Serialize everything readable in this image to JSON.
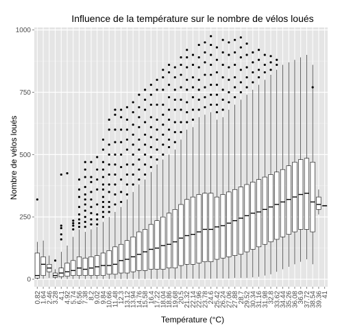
{
  "chart_data": {
    "type": "boxplot",
    "title": "Influence de la température sur le nombre de vélos loués",
    "xlabel": "Température (°C)",
    "ylabel": "Nombre de vélos loués",
    "ylim": [
      -30,
      1010
    ],
    "yticks": [
      0,
      250,
      500,
      750,
      1000
    ],
    "grid": true,
    "background": "#e5e5e5",
    "grid_color": "#ffffff",
    "box_color": "#000000",
    "categories": [
      "0.82",
      "1.64",
      "2.46",
      "3.28",
      "4.1",
      "4.92",
      "5.74",
      "6.56",
      "7.38",
      "8.2",
      "9.02",
      "9.84",
      "10.66",
      "11.48",
      "12.3",
      "13.12",
      "13.94",
      "14.76",
      "15.58",
      "16.4",
      "17.22",
      "18.04",
      "18.86",
      "19.68",
      "20.5",
      "21.32",
      "22.14",
      "22.96",
      "23.78",
      "24.6",
      "25.42",
      "26.24",
      "27.06",
      "27.88",
      "28.7",
      "29.52",
      "30.34",
      "31.16",
      "31.98",
      "32.8",
      "33.62",
      "34.44",
      "35.26",
      "36.08",
      "36.9",
      "37.72",
      "38.54",
      "39.36",
      "41"
    ],
    "boxes": [
      {
        "q1": 5,
        "med": 15,
        "q3": 105,
        "lo": 0,
        "hi": 150,
        "outliers": [
          320
        ]
      },
      {
        "q1": 15,
        "med": 60,
        "q3": 90,
        "lo": 2,
        "hi": 155,
        "outliers": []
      },
      {
        "q1": 30,
        "med": 45,
        "q3": 60,
        "lo": 5,
        "hi": 95,
        "outliers": []
      },
      {
        "q1": 8,
        "med": 15,
        "q3": 25,
        "lo": 1,
        "hi": 40,
        "outliers": [
          75
        ]
      },
      {
        "q1": 10,
        "med": 25,
        "q3": 45,
        "lo": 1,
        "hi": 110,
        "outliers": [
          160,
          180,
          205,
          215,
          420
        ]
      },
      {
        "q1": 12,
        "med": 30,
        "q3": 65,
        "lo": 1,
        "hi": 135,
        "outliers": [
          425
        ]
      },
      {
        "q1": 15,
        "med": 35,
        "q3": 75,
        "lo": 1,
        "hi": 170,
        "outliers": [
          200,
          215,
          225,
          235
        ]
      },
      {
        "q1": 15,
        "med": 45,
        "q3": 90,
        "lo": 1,
        "hi": 200,
        "outliers": [
          210,
          225,
          240,
          260,
          290,
          330,
          360,
          400
        ]
      },
      {
        "q1": 15,
        "med": 40,
        "q3": 85,
        "lo": 1,
        "hi": 190,
        "outliers": [
          210,
          230,
          250,
          275,
          300,
          320,
          340,
          370,
          410,
          440,
          470
        ]
      },
      {
        "q1": 15,
        "med": 45,
        "q3": 90,
        "lo": 1,
        "hi": 200,
        "outliers": [
          220,
          240,
          265,
          290,
          320,
          350,
          390,
          410,
          470
        ]
      },
      {
        "q1": 15,
        "med": 50,
        "q3": 95,
        "lo": 1,
        "hi": 210,
        "outliers": [
          220,
          240,
          260,
          300,
          360,
          400,
          440,
          490
        ]
      },
      {
        "q1": 15,
        "med": 55,
        "q3": 105,
        "lo": 1,
        "hi": 230,
        "outliers": [
          250,
          270,
          290,
          310,
          330,
          360,
          380,
          410,
          440,
          470,
          520,
          560
        ]
      },
      {
        "q1": 20,
        "med": 55,
        "q3": 115,
        "lo": 1,
        "hi": 250,
        "outliers": [
          270,
          290,
          310,
          350,
          380,
          420,
          460,
          500,
          540,
          600,
          640
        ]
      },
      {
        "q1": 20,
        "med": 60,
        "q3": 130,
        "lo": 1,
        "hi": 270,
        "outliers": [
          300,
          340,
          380,
          420,
          460,
          500,
          550,
          600,
          660,
          680
        ]
      },
      {
        "q1": 25,
        "med": 75,
        "q3": 140,
        "lo": 1,
        "hi": 290,
        "outliers": [
          310,
          350,
          400,
          450,
          500,
          550,
          600,
          650,
          680
        ]
      },
      {
        "q1": 25,
        "med": 80,
        "q3": 155,
        "lo": 1,
        "hi": 320,
        "outliers": [
          340,
          380,
          420,
          460,
          520,
          560,
          600,
          640,
          690
        ]
      },
      {
        "q1": 30,
        "med": 90,
        "q3": 170,
        "lo": 1,
        "hi": 350,
        "outliers": [
          380,
          420,
          460,
          500,
          540,
          580,
          620,
          670,
          710
        ]
      },
      {
        "q1": 35,
        "med": 100,
        "q3": 190,
        "lo": 1,
        "hi": 380,
        "outliers": [
          400,
          440,
          480,
          520,
          560,
          610,
          650,
          690,
          740
        ]
      },
      {
        "q1": 35,
        "med": 110,
        "q3": 200,
        "lo": 1,
        "hi": 400,
        "outliers": [
          420,
          460,
          500,
          540,
          580,
          630,
          680,
          720,
          760
        ]
      },
      {
        "q1": 40,
        "med": 120,
        "q3": 220,
        "lo": 1,
        "hi": 430,
        "outliers": [
          450,
          490,
          530,
          570,
          610,
          650,
          700,
          740,
          780
        ]
      },
      {
        "q1": 40,
        "med": 125,
        "q3": 235,
        "lo": 1,
        "hi": 460,
        "outliers": [
          480,
          520,
          560,
          600,
          640,
          700,
          760,
          800
        ]
      },
      {
        "q1": 40,
        "med": 135,
        "q3": 250,
        "lo": 1,
        "hi": 480,
        "outliers": [
          500,
          540,
          580,
          620,
          660,
          700,
          760,
          810,
          840
        ]
      },
      {
        "q1": 45,
        "med": 140,
        "q3": 265,
        "lo": 1,
        "hi": 500,
        "outliers": [
          530,
          560,
          600,
          640,
          680,
          730,
          780,
          830,
          860
        ]
      },
      {
        "q1": 45,
        "med": 150,
        "q3": 280,
        "lo": 1,
        "hi": 520,
        "outliers": [
          550,
          590,
          630,
          680,
          720,
          760,
          810,
          850
        ]
      },
      {
        "q1": 55,
        "med": 165,
        "q3": 300,
        "lo": 2,
        "hi": 560,
        "outliers": [
          590,
          630,
          680,
          720,
          770,
          820,
          860,
          890
        ]
      },
      {
        "q1": 60,
        "med": 175,
        "q3": 320,
        "lo": 2,
        "hi": 600,
        "outliers": [
          630,
          670,
          710,
          760,
          800,
          850,
          890,
          920
        ]
      },
      {
        "q1": 60,
        "med": 180,
        "q3": 330,
        "lo": 2,
        "hi": 610,
        "outliers": [
          640,
          680,
          730,
          770,
          810,
          860,
          900
        ]
      },
      {
        "q1": 65,
        "med": 190,
        "q3": 340,
        "lo": 2,
        "hi": 650,
        "outliers": [
          680,
          720,
          760,
          800,
          850,
          890,
          940
        ]
      },
      {
        "q1": 70,
        "med": 200,
        "q3": 345,
        "lo": 2,
        "hi": 660,
        "outliers": [
          690,
          730,
          770,
          820,
          870,
          910,
          950
        ]
      },
      {
        "q1": 70,
        "med": 200,
        "q3": 345,
        "lo": 2,
        "hi": 670,
        "outliers": [
          700,
          740,
          780,
          820,
          860,
          900,
          940,
          975
        ]
      },
      {
        "q1": 80,
        "med": 210,
        "q3": 330,
        "lo": 3,
        "hi": 640,
        "outliers": [
          670,
          700,
          740,
          780,
          830,
          880,
          930
        ]
      },
      {
        "q1": 85,
        "med": 215,
        "q3": 340,
        "lo": 3,
        "hi": 650,
        "outliers": [
          680,
          720,
          760,
          810,
          860,
          910,
          960
        ]
      },
      {
        "q1": 90,
        "med": 225,
        "q3": 350,
        "lo": 3,
        "hi": 680,
        "outliers": [
          710,
          750,
          800,
          850,
          900,
          950
        ]
      },
      {
        "q1": 95,
        "med": 235,
        "q3": 360,
        "lo": 5,
        "hi": 700,
        "outliers": [
          730,
          770,
          810,
          860,
          910,
          960
        ]
      },
      {
        "q1": 100,
        "med": 245,
        "q3": 370,
        "lo": 5,
        "hi": 720,
        "outliers": [
          750,
          790,
          840,
          890,
          930,
          970
        ]
      },
      {
        "q1": 110,
        "med": 255,
        "q3": 380,
        "lo": 5,
        "hi": 740,
        "outliers": [
          770,
          810,
          850,
          900,
          945
        ]
      },
      {
        "q1": 120,
        "med": 265,
        "q3": 390,
        "lo": 8,
        "hi": 760,
        "outliers": [
          790,
          830,
          870,
          910
        ]
      },
      {
        "q1": 130,
        "med": 270,
        "q3": 400,
        "lo": 10,
        "hi": 780,
        "outliers": [
          810,
          840,
          880,
          920
        ]
      },
      {
        "q1": 140,
        "med": 280,
        "q3": 410,
        "lo": 15,
        "hi": 800,
        "outliers": [
          830,
          860,
          900
        ]
      },
      {
        "q1": 150,
        "med": 290,
        "q3": 420,
        "lo": 20,
        "hi": 820,
        "outliers": [
          840,
          870,
          895
        ]
      },
      {
        "q1": 160,
        "med": 300,
        "q3": 430,
        "lo": 30,
        "hi": 840,
        "outliers": [
          860,
          880
        ]
      },
      {
        "q1": 170,
        "med": 310,
        "q3": 440,
        "lo": 40,
        "hi": 860,
        "outliers": []
      },
      {
        "q1": 180,
        "med": 320,
        "q3": 455,
        "lo": 50,
        "hi": 870,
        "outliers": []
      },
      {
        "q1": 190,
        "med": 330,
        "q3": 470,
        "lo": 60,
        "hi": 880,
        "outliers": []
      },
      {
        "q1": 200,
        "med": 340,
        "q3": 480,
        "lo": 70,
        "hi": 890,
        "outliers": []
      },
      {
        "q1": 200,
        "med": 345,
        "q3": 485,
        "lo": 80,
        "hi": 900,
        "outliers": []
      },
      {
        "q1": 190,
        "med": 310,
        "q3": 470,
        "lo": 60,
        "hi": 860,
        "outliers": [
          770
        ]
      },
      {
        "q1": 280,
        "med": 300,
        "q3": 330,
        "lo": 260,
        "hi": 360,
        "outliers": []
      },
      {
        "q1": 295,
        "med": 295,
        "q3": 295,
        "lo": 295,
        "hi": 295,
        "outliers": []
      }
    ]
  }
}
